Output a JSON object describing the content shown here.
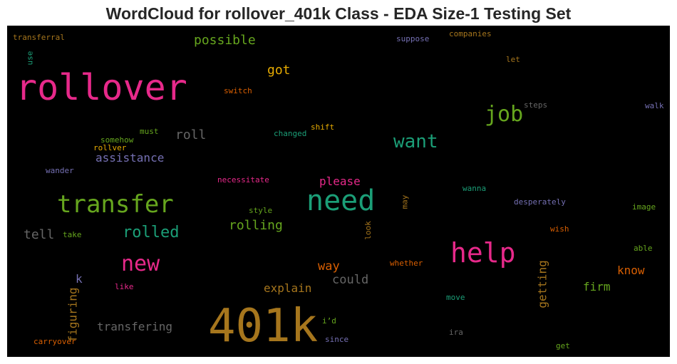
{
  "figure": {
    "title": "WordCloud for rollover_401k Class - EDA Size-1 Testing Set"
  },
  "cloud": {
    "background": "#000000",
    "words": [
      {
        "text": "401k",
        "color": "#a6761d"
      },
      {
        "text": "rollover",
        "color": "#e7298a"
      },
      {
        "text": "need",
        "color": "#1b9e77"
      },
      {
        "text": "transfer",
        "color": "#66a61e"
      },
      {
        "text": "help",
        "color": "#e7298a"
      },
      {
        "text": "job",
        "color": "#66a61e"
      },
      {
        "text": "new",
        "color": "#e7298a"
      },
      {
        "text": "want",
        "color": "#1b9e77"
      },
      {
        "text": "rolled",
        "color": "#1b9e77"
      },
      {
        "text": "possible",
        "color": "#66a61e"
      },
      {
        "text": "got",
        "color": "#e6ab02"
      },
      {
        "text": "roll",
        "color": "#666666"
      },
      {
        "text": "assistance",
        "color": "#7570b3"
      },
      {
        "text": "tell",
        "color": "#666666"
      },
      {
        "text": "rolling",
        "color": "#66a61e"
      },
      {
        "text": "please",
        "color": "#e7298a"
      },
      {
        "text": "way",
        "color": "#d95f02"
      },
      {
        "text": "could",
        "color": "#666666"
      },
      {
        "text": "explain",
        "color": "#a6761d"
      },
      {
        "text": "know",
        "color": "#d95f02"
      },
      {
        "text": "firm",
        "color": "#66a61e"
      },
      {
        "text": "getting",
        "color": "#a6761d"
      },
      {
        "text": "transfering",
        "color": "#666666"
      },
      {
        "text": "figuring",
        "color": "#a6761d"
      },
      {
        "text": "k",
        "color": "#7570b3"
      },
      {
        "text": "transferral",
        "color": "#a6761d"
      },
      {
        "text": "use",
        "color": "#1b9e77"
      },
      {
        "text": "switch",
        "color": "#d95f02"
      },
      {
        "text": "suppose",
        "color": "#7570b3"
      },
      {
        "text": "companies",
        "color": "#a6761d"
      },
      {
        "text": "let",
        "color": "#a6761d"
      },
      {
        "text": "steps",
        "color": "#666666"
      },
      {
        "text": "walk",
        "color": "#7570b3"
      },
      {
        "text": "must",
        "color": "#66a61e"
      },
      {
        "text": "somehow",
        "color": "#66a61e"
      },
      {
        "text": "rollver",
        "color": "#e6ab02"
      },
      {
        "text": "changed",
        "color": "#1b9e77"
      },
      {
        "text": "shift",
        "color": "#e6ab02"
      },
      {
        "text": "wander",
        "color": "#7570b3"
      },
      {
        "text": "necessitate",
        "color": "#e7298a"
      },
      {
        "text": "wanna",
        "color": "#1b9e77"
      },
      {
        "text": "may",
        "color": "#a6761d"
      },
      {
        "text": "desperately",
        "color": "#7570b3"
      },
      {
        "text": "image",
        "color": "#66a61e"
      },
      {
        "text": "style",
        "color": "#66a61e"
      },
      {
        "text": "take",
        "color": "#66a61e"
      },
      {
        "text": "look",
        "color": "#a6761d"
      },
      {
        "text": "wish",
        "color": "#d95f02"
      },
      {
        "text": "able",
        "color": "#66a61e"
      },
      {
        "text": "whether",
        "color": "#d95f02"
      },
      {
        "text": "like",
        "color": "#e7298a"
      },
      {
        "text": "move",
        "color": "#1b9e77"
      },
      {
        "text": "i’d",
        "color": "#66a61e"
      },
      {
        "text": "ira",
        "color": "#666666"
      },
      {
        "text": "since",
        "color": "#7570b3"
      },
      {
        "text": "carryover",
        "color": "#d95f02"
      },
      {
        "text": "get",
        "color": "#66a61e"
      }
    ]
  }
}
